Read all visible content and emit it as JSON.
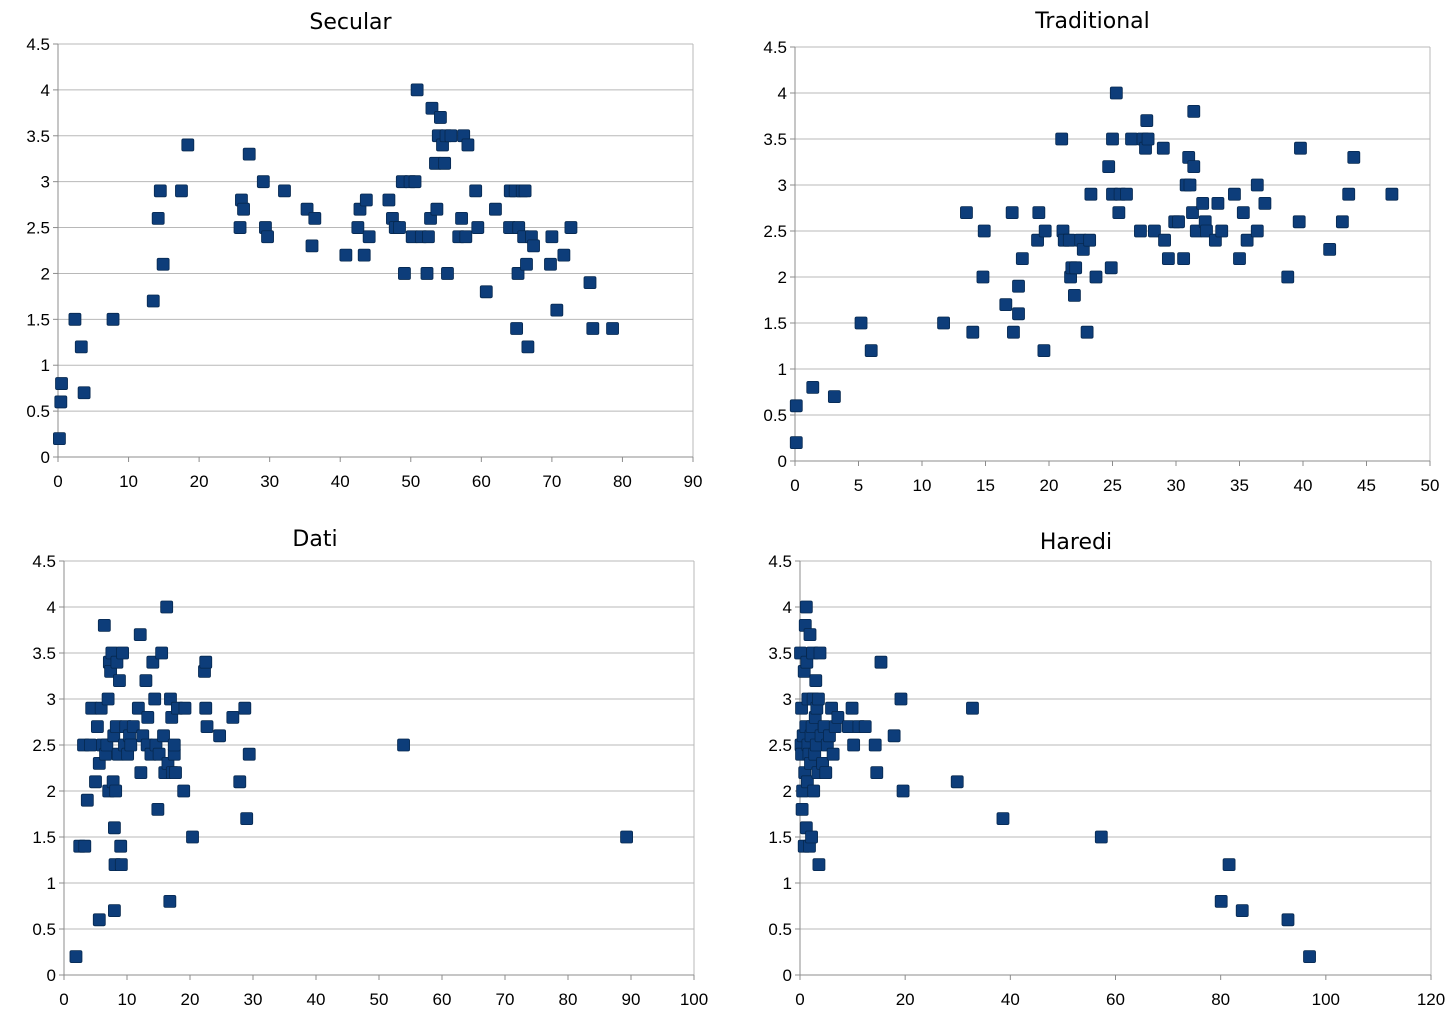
{
  "style": {
    "marker_color": "#0d3d7a",
    "grid_color": "#b8b8b8",
    "axis_color": "#8c8c8c"
  },
  "chart_data": [
    {
      "type": "scatter",
      "title": "Secular",
      "xlabel": "",
      "ylabel": "",
      "xlim": [
        0,
        90
      ],
      "ylim": [
        0,
        4.5
      ],
      "xticks": [
        "0",
        "10",
        "20",
        "30",
        "40",
        "50",
        "60",
        "70",
        "80",
        "90"
      ],
      "yticks": [
        "0",
        "0.5",
        "1",
        "1.5",
        "2",
        "2.5",
        "3",
        "3.5",
        "4",
        "4.5"
      ],
      "grid": true,
      "points": [
        [
          0.2,
          0.2
        ],
        [
          0.4,
          0.6
        ],
        [
          0.5,
          0.8
        ],
        [
          2.4,
          1.5
        ],
        [
          3.3,
          1.2
        ],
        [
          3.7,
          0.7
        ],
        [
          7.8,
          1.5
        ],
        [
          13.5,
          1.7
        ],
        [
          14.2,
          2.6
        ],
        [
          14.5,
          2.9
        ],
        [
          14.9,
          2.1
        ],
        [
          17.5,
          2.9
        ],
        [
          18.4,
          3.4
        ],
        [
          25.8,
          2.5
        ],
        [
          26.0,
          2.8
        ],
        [
          26.3,
          2.7
        ],
        [
          27.1,
          3.3
        ],
        [
          29.1,
          3.0
        ],
        [
          29.4,
          2.5
        ],
        [
          29.7,
          2.4
        ],
        [
          32.1,
          2.9
        ],
        [
          35.3,
          2.7
        ],
        [
          36.0,
          2.3
        ],
        [
          36.4,
          2.6
        ],
        [
          40.8,
          2.2
        ],
        [
          42.5,
          2.5
        ],
        [
          42.8,
          2.7
        ],
        [
          43.4,
          2.2
        ],
        [
          43.7,
          2.8
        ],
        [
          44.1,
          2.4
        ],
        [
          46.9,
          2.8
        ],
        [
          47.4,
          2.6
        ],
        [
          47.8,
          2.5
        ],
        [
          48.4,
          2.5
        ],
        [
          48.8,
          3.0
        ],
        [
          49.1,
          2.0
        ],
        [
          49.9,
          3.0
        ],
        [
          50.2,
          2.4
        ],
        [
          50.6,
          3.0
        ],
        [
          50.9,
          4.0
        ],
        [
          51.5,
          2.4
        ],
        [
          52.3,
          2.0
        ],
        [
          52.5,
          2.4
        ],
        [
          52.8,
          2.6
        ],
        [
          53.0,
          3.8
        ],
        [
          53.5,
          3.2
        ],
        [
          53.7,
          2.7
        ],
        [
          53.9,
          3.5
        ],
        [
          54.2,
          3.7
        ],
        [
          54.5,
          3.4
        ],
        [
          54.8,
          3.2
        ],
        [
          55.0,
          3.5
        ],
        [
          55.2,
          2.0
        ],
        [
          55.7,
          3.5
        ],
        [
          56.8,
          2.4
        ],
        [
          57.2,
          2.6
        ],
        [
          57.5,
          3.5
        ],
        [
          57.8,
          2.4
        ],
        [
          58.1,
          3.4
        ],
        [
          59.2,
          2.9
        ],
        [
          59.5,
          2.5
        ],
        [
          60.7,
          1.8
        ],
        [
          62.0,
          2.7
        ],
        [
          64.0,
          2.5
        ],
        [
          64.1,
          2.9
        ],
        [
          64.8,
          2.9
        ],
        [
          65.0,
          1.4
        ],
        [
          65.2,
          2.0
        ],
        [
          65.3,
          2.5
        ],
        [
          65.8,
          2.9
        ],
        [
          66.0,
          2.4
        ],
        [
          66.2,
          2.9
        ],
        [
          66.4,
          2.1
        ],
        [
          66.6,
          1.2
        ],
        [
          67.1,
          2.4
        ],
        [
          67.4,
          2.3
        ],
        [
          69.8,
          2.1
        ],
        [
          70.0,
          2.4
        ],
        [
          70.7,
          1.6
        ],
        [
          71.7,
          2.2
        ],
        [
          72.7,
          2.5
        ],
        [
          75.4,
          1.9
        ],
        [
          75.8,
          1.4
        ],
        [
          78.6,
          1.4
        ]
      ]
    },
    {
      "type": "scatter",
      "title": "Traditional",
      "xlabel": "",
      "ylabel": "",
      "xlim": [
        0,
        50
      ],
      "ylim": [
        0,
        4.5
      ],
      "xticks": [
        "0",
        "5",
        "10",
        "15",
        "20",
        "25",
        "30",
        "35",
        "40",
        "45",
        "50"
      ],
      "yticks": [
        "0",
        "0.5",
        "1",
        "1.5",
        "2",
        "2.5",
        "3",
        "3.5",
        "4",
        "4.5"
      ],
      "grid": true,
      "points": [
        [
          0.1,
          0.2
        ],
        [
          0.1,
          0.6
        ],
        [
          1.4,
          0.8
        ],
        [
          3.1,
          0.7
        ],
        [
          5.2,
          1.5
        ],
        [
          6.0,
          1.2
        ],
        [
          11.7,
          1.5
        ],
        [
          13.5,
          2.7
        ],
        [
          14.0,
          1.4
        ],
        [
          14.9,
          2.5
        ],
        [
          14.8,
          2.0
        ],
        [
          16.6,
          1.7
        ],
        [
          17.1,
          2.7
        ],
        [
          17.2,
          1.4
        ],
        [
          17.6,
          1.6
        ],
        [
          17.6,
          1.9
        ],
        [
          17.9,
          2.2
        ],
        [
          19.1,
          2.4
        ],
        [
          19.2,
          2.7
        ],
        [
          19.6,
          1.2
        ],
        [
          19.7,
          2.5
        ],
        [
          21.1,
          2.5
        ],
        [
          21.2,
          2.4
        ],
        [
          21.0,
          3.5
        ],
        [
          21.6,
          2.4
        ],
        [
          21.7,
          2.0
        ],
        [
          21.8,
          2.1
        ],
        [
          22.0,
          1.8
        ],
        [
          22.1,
          2.1
        ],
        [
          22.5,
          2.4
        ],
        [
          22.7,
          2.3
        ],
        [
          23.0,
          1.4
        ],
        [
          23.2,
          2.4
        ],
        [
          23.3,
          2.9
        ],
        [
          23.7,
          2.0
        ],
        [
          24.7,
          3.2
        ],
        [
          24.9,
          2.1
        ],
        [
          25.0,
          2.9
        ],
        [
          25.0,
          3.5
        ],
        [
          25.3,
          4.0
        ],
        [
          25.5,
          2.7
        ],
        [
          25.6,
          2.9
        ],
        [
          26.1,
          2.9
        ],
        [
          26.5,
          3.5
        ],
        [
          27.2,
          2.5
        ],
        [
          27.4,
          3.5
        ],
        [
          27.6,
          3.4
        ],
        [
          27.7,
          3.7
        ],
        [
          27.8,
          3.5
        ],
        [
          28.3,
          2.5
        ],
        [
          29.0,
          3.4
        ],
        [
          29.1,
          2.4
        ],
        [
          29.4,
          2.2
        ],
        [
          29.9,
          2.6
        ],
        [
          30.2,
          2.6
        ],
        [
          30.6,
          2.2
        ],
        [
          30.8,
          3.0
        ],
        [
          31.0,
          3.3
        ],
        [
          31.1,
          3.0
        ],
        [
          31.3,
          2.7
        ],
        [
          31.4,
          3.2
        ],
        [
          31.4,
          3.8
        ],
        [
          31.6,
          2.5
        ],
        [
          32.1,
          2.8
        ],
        [
          32.3,
          2.6
        ],
        [
          32.4,
          2.5
        ],
        [
          33.1,
          2.4
        ],
        [
          33.3,
          2.8
        ],
        [
          33.6,
          2.5
        ],
        [
          34.6,
          2.9
        ],
        [
          35.0,
          2.2
        ],
        [
          35.3,
          2.7
        ],
        [
          35.6,
          2.4
        ],
        [
          36.4,
          2.5
        ],
        [
          36.4,
          3.0
        ],
        [
          37.0,
          2.8
        ],
        [
          38.8,
          2.0
        ],
        [
          39.7,
          2.6
        ],
        [
          39.8,
          3.4
        ],
        [
          42.1,
          2.3
        ],
        [
          43.1,
          2.6
        ],
        [
          43.6,
          2.9
        ],
        [
          44.0,
          3.3
        ],
        [
          47.0,
          2.9
        ]
      ]
    },
    {
      "type": "scatter",
      "title": "Dati",
      "xlabel": "",
      "ylabel": "",
      "xlim": [
        0,
        100
      ],
      "ylim": [
        0,
        4.5
      ],
      "xticks": [
        "0",
        "10",
        "20",
        "30",
        "40",
        "50",
        "60",
        "70",
        "80",
        "90",
        "100"
      ],
      "yticks": [
        "0",
        "0.5",
        "1",
        "1.5",
        "2",
        "2.5",
        "3",
        "3.5",
        "4",
        "4.5"
      ],
      "grid": true,
      "points": [
        [
          1.9,
          0.2
        ],
        [
          2.5,
          1.4
        ],
        [
          3.1,
          2.5
        ],
        [
          3.3,
          1.4
        ],
        [
          3.7,
          1.9
        ],
        [
          4.2,
          2.5
        ],
        [
          4.4,
          2.9
        ],
        [
          5.0,
          2.1
        ],
        [
          5.3,
          2.7
        ],
        [
          5.6,
          0.6
        ],
        [
          5.6,
          2.3
        ],
        [
          5.9,
          2.9
        ],
        [
          6.1,
          2.5
        ],
        [
          6.4,
          3.8
        ],
        [
          6.6,
          2.4
        ],
        [
          6.8,
          2.5
        ],
        [
          7.0,
          3.0
        ],
        [
          7.1,
          2.0
        ],
        [
          7.2,
          3.4
        ],
        [
          7.4,
          3.3
        ],
        [
          7.6,
          3.5
        ],
        [
          7.8,
          2.1
        ],
        [
          7.9,
          2.6
        ],
        [
          8.0,
          0.7
        ],
        [
          8.0,
          1.6
        ],
        [
          8.1,
          1.2
        ],
        [
          8.2,
          2.0
        ],
        [
          8.3,
          2.7
        ],
        [
          8.4,
          3.4
        ],
        [
          8.6,
          2.4
        ],
        [
          8.8,
          3.2
        ],
        [
          9.0,
          1.4
        ],
        [
          9.1,
          1.2
        ],
        [
          9.3,
          3.5
        ],
        [
          9.6,
          2.5
        ],
        [
          9.8,
          2.7
        ],
        [
          10.1,
          2.4
        ],
        [
          10.4,
          2.6
        ],
        [
          10.6,
          2.5
        ],
        [
          11.0,
          2.7
        ],
        [
          11.8,
          2.9
        ],
        [
          12.1,
          3.7
        ],
        [
          12.2,
          2.2
        ],
        [
          12.5,
          2.6
        ],
        [
          13.0,
          3.2
        ],
        [
          13.2,
          2.5
        ],
        [
          13.3,
          2.8
        ],
        [
          13.8,
          2.4
        ],
        [
          14.1,
          3.4
        ],
        [
          14.4,
          3.0
        ],
        [
          14.6,
          2.5
        ],
        [
          14.9,
          1.8
        ],
        [
          15.1,
          2.4
        ],
        [
          15.5,
          3.5
        ],
        [
          15.8,
          2.6
        ],
        [
          16.0,
          2.2
        ],
        [
          16.3,
          4.0
        ],
        [
          16.5,
          2.3
        ],
        [
          16.8,
          0.8
        ],
        [
          16.9,
          3.0
        ],
        [
          17.1,
          2.8
        ],
        [
          17.2,
          2.2
        ],
        [
          17.5,
          2.4
        ],
        [
          17.5,
          2.5
        ],
        [
          17.7,
          2.2
        ],
        [
          18.0,
          2.9
        ],
        [
          19.0,
          2.0
        ],
        [
          19.2,
          2.9
        ],
        [
          20.4,
          1.5
        ],
        [
          22.3,
          3.3
        ],
        [
          22.5,
          3.4
        ],
        [
          22.5,
          2.9
        ],
        [
          22.7,
          2.7
        ],
        [
          24.7,
          2.6
        ],
        [
          26.8,
          2.8
        ],
        [
          27.9,
          2.1
        ],
        [
          28.7,
          2.9
        ],
        [
          29.0,
          1.7
        ],
        [
          29.4,
          2.4
        ],
        [
          53.9,
          2.5
        ],
        [
          89.3,
          1.5
        ]
      ]
    },
    {
      "type": "scatter",
      "title": "Haredi",
      "xlabel": "",
      "ylabel": "",
      "xlim": [
        0,
        120
      ],
      "ylim": [
        0,
        4.5
      ],
      "xticks": [
        "0",
        "20",
        "40",
        "60",
        "80",
        "100",
        "120"
      ],
      "yticks": [
        "0",
        "0.5",
        "1",
        "1.5",
        "2",
        "2.5",
        "3",
        "3.5",
        "4",
        "4.5"
      ],
      "grid": true,
      "points": [
        [
          0.1,
          3.5
        ],
        [
          0.2,
          2.5
        ],
        [
          0.3,
          2.9
        ],
        [
          0.3,
          2.4
        ],
        [
          0.4,
          1.8
        ],
        [
          0.5,
          2.0
        ],
        [
          0.6,
          2.6
        ],
        [
          0.8,
          3.3
        ],
        [
          0.8,
          1.4
        ],
        [
          0.9,
          2.2
        ],
        [
          1.0,
          3.8
        ],
        [
          1.1,
          2.7
        ],
        [
          1.2,
          4.0
        ],
        [
          1.2,
          1.6
        ],
        [
          1.3,
          3.4
        ],
        [
          1.4,
          2.1
        ],
        [
          1.5,
          2.5
        ],
        [
          1.5,
          3.0
        ],
        [
          1.7,
          2.4
        ],
        [
          1.8,
          1.4
        ],
        [
          1.9,
          3.7
        ],
        [
          2.0,
          2.3
        ],
        [
          2.1,
          2.6
        ],
        [
          2.2,
          1.5
        ],
        [
          2.3,
          2.7
        ],
        [
          2.4,
          3.5
        ],
        [
          2.5,
          3.0
        ],
        [
          2.6,
          2.0
        ],
        [
          2.8,
          2.4
        ],
        [
          2.9,
          2.8
        ],
        [
          3.0,
          3.2
        ],
        [
          3.1,
          2.5
        ],
        [
          3.2,
          2.9
        ],
        [
          3.4,
          2.2
        ],
        [
          3.5,
          3.0
        ],
        [
          3.6,
          1.2
        ],
        [
          3.8,
          3.5
        ],
        [
          4.0,
          2.6
        ],
        [
          4.3,
          2.3
        ],
        [
          4.6,
          2.7
        ],
        [
          4.9,
          2.2
        ],
        [
          5.2,
          2.5
        ],
        [
          5.6,
          2.6
        ],
        [
          6.0,
          2.9
        ],
        [
          6.3,
          2.4
        ],
        [
          6.7,
          2.7
        ],
        [
          7.2,
          2.8
        ],
        [
          9.2,
          2.7
        ],
        [
          9.9,
          2.9
        ],
        [
          10.2,
          2.5
        ],
        [
          11.2,
          2.7
        ],
        [
          12.4,
          2.7
        ],
        [
          14.3,
          2.5
        ],
        [
          14.6,
          2.2
        ],
        [
          15.4,
          3.4
        ],
        [
          17.9,
          2.6
        ],
        [
          19.2,
          3.0
        ],
        [
          19.6,
          2.0
        ],
        [
          29.9,
          2.1
        ],
        [
          32.8,
          2.9
        ],
        [
          38.6,
          1.7
        ],
        [
          57.3,
          1.5
        ],
        [
          80.1,
          0.8
        ],
        [
          81.6,
          1.2
        ],
        [
          84.1,
          0.7
        ],
        [
          92.8,
          0.6
        ],
        [
          96.9,
          0.2
        ]
      ]
    }
  ]
}
